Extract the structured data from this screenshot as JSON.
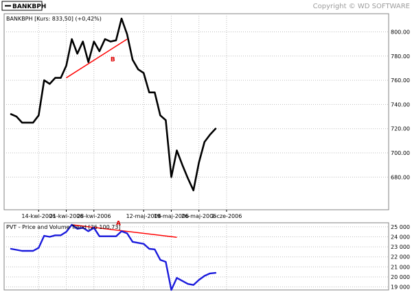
{
  "header": {
    "legend_label": "BANKBPH",
    "copyright": "Copyright © WD SOFTWARE"
  },
  "colors": {
    "price_line": "#000000",
    "pvt_line": "#1a1adc",
    "trend_line": "#ff0000",
    "annotation": "#dd0000",
    "grid": "#bdbdbd",
    "panel_border": "#808080"
  },
  "chart_data": [
    {
      "type": "line",
      "title": "BANKBPH [Kurs: 833,50] (+0,42%)",
      "ylim": [
        653,
        815
      ],
      "yticks": [
        680,
        700,
        720,
        740,
        760,
        780,
        800
      ],
      "x_tick_labels": [
        {
          "label": "14-kwi-2006",
          "index": 5
        },
        {
          "label": "21-kwi-2006",
          "index": 10
        },
        {
          "label": "28-kwi-2006",
          "index": 15
        },
        {
          "label": "12-maj-2006",
          "index": 24
        },
        {
          "label": "19-maj-2006",
          "index": 29
        },
        {
          "label": "26-maj-2006",
          "index": 34
        },
        {
          "label": "2-cze-2006",
          "index": 39
        }
      ],
      "grid": true,
      "series": [
        {
          "name": "BANKBPH",
          "values": [
            732,
            730,
            725,
            725,
            725,
            731,
            760,
            757,
            762,
            762,
            772,
            794,
            782,
            792,
            775,
            792,
            784,
            794,
            792,
            793,
            811,
            798,
            777,
            769,
            766,
            750,
            750,
            731,
            727,
            680,
            702,
            690,
            679,
            669,
            692,
            709,
            715,
            720
          ]
        }
      ],
      "annotations": [
        {
          "label": "B",
          "from": {
            "index": 10,
            "value": 762
          },
          "to": {
            "index": 21,
            "value": 794
          },
          "label_at": {
            "index": 18,
            "value": 778
          }
        }
      ]
    },
    {
      "type": "line",
      "title": "PVT - Price and Volume Trend [26 100,73]",
      "ylim": [
        18700,
        25400
      ],
      "yticks": [
        19000,
        20000,
        21000,
        22000,
        23000,
        24000,
        25000
      ],
      "y_tick_labels": [
        "19 000",
        "20 000",
        "21 000",
        "22 000",
        "23 000",
        "24 000",
        "25 000"
      ],
      "grid": true,
      "series": [
        {
          "name": "PVT",
          "values": [
            22800,
            22700,
            22600,
            22600,
            22600,
            22900,
            24100,
            24000,
            24150,
            24150,
            24500,
            25200,
            24800,
            24900,
            24550,
            24900,
            24050,
            24050,
            24050,
            24050,
            24550,
            24350,
            23500,
            23400,
            23300,
            22800,
            22750,
            21700,
            21500,
            18700,
            19900,
            19600,
            19300,
            19200,
            19700,
            20100,
            20350,
            20400
          ]
        }
      ],
      "annotations": [
        {
          "label": "A",
          "from": {
            "index": 11,
            "value": 25200
          },
          "to": {
            "index": 30,
            "value": 23950
          },
          "label_at": {
            "index": 19,
            "value": 25450
          }
        }
      ]
    }
  ]
}
